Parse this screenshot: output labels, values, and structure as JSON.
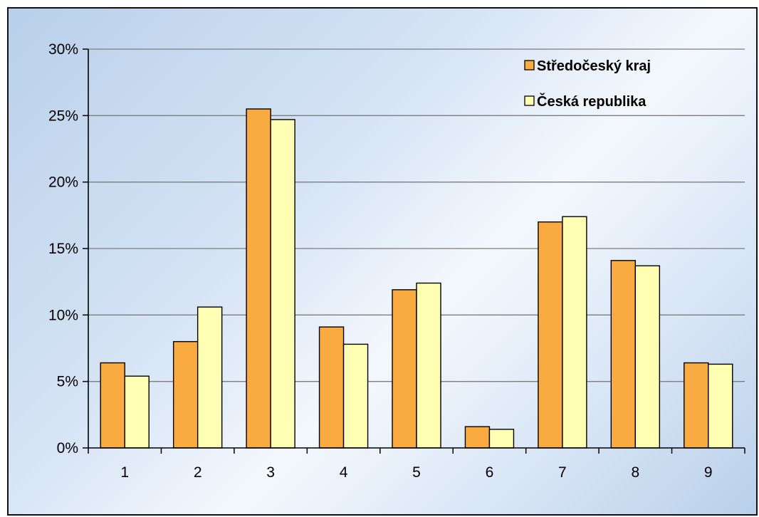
{
  "chart_data": {
    "type": "bar",
    "categories": [
      "1",
      "2",
      "3",
      "4",
      "5",
      "6",
      "7",
      "8",
      "9"
    ],
    "series": [
      {
        "name": "Středočeský kraj",
        "color": "#f9ab41",
        "values": [
          6.4,
          8.0,
          25.5,
          9.1,
          11.9,
          1.6,
          17.0,
          14.1,
          6.4
        ]
      },
      {
        "name": "Česká republika",
        "color": "#ffffb4",
        "values": [
          5.4,
          10.6,
          24.7,
          7.8,
          12.4,
          1.4,
          17.4,
          13.7,
          6.3
        ]
      }
    ],
    "ylim": [
      0,
      30
    ],
    "yticks": [
      0,
      5,
      10,
      15,
      20,
      25,
      30
    ],
    "ytick_labels": [
      "0%",
      "5%",
      "10%",
      "15%",
      "20%",
      "25%",
      "30%"
    ],
    "title": "",
    "xlabel": "",
    "ylabel": "",
    "grid": true,
    "legend_position": "top-right"
  }
}
